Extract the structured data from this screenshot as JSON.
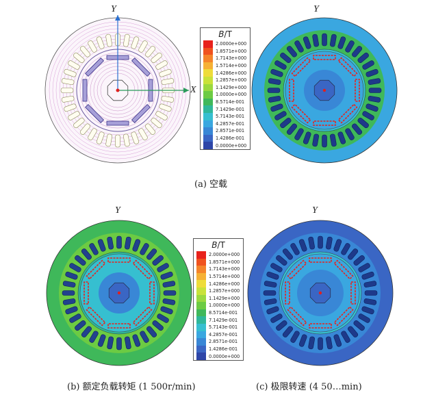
{
  "legend": {
    "title_var": "B",
    "title_unit": "/T",
    "entries": [
      {
        "label": "2.0000e+000",
        "color": "#e8221c"
      },
      {
        "label": "1.8571e+000",
        "color": "#f0521e"
      },
      {
        "label": "1.7143e+000",
        "color": "#f5842a"
      },
      {
        "label": "1.5714e+000",
        "color": "#f6b135"
      },
      {
        "label": "1.4286e+000",
        "color": "#eedc3a"
      },
      {
        "label": "1.2857e+000",
        "color": "#c9e23a"
      },
      {
        "label": "1.1429e+000",
        "color": "#9bd93f"
      },
      {
        "label": "1.0000e+000",
        "color": "#6ccb43"
      },
      {
        "label": "8.5714e-001",
        "color": "#3fb85a"
      },
      {
        "label": "7.1429e-001",
        "color": "#2fb79a"
      },
      {
        "label": "5.7143e-001",
        "color": "#36bfd0"
      },
      {
        "label": "4.2857e-001",
        "color": "#3aa7e0"
      },
      {
        "label": "2.8571e-001",
        "color": "#3987d6"
      },
      {
        "label": "1.4286e-001",
        "color": "#3a66c4"
      },
      {
        "label": "0.0000e+000",
        "color": "#2e46a8"
      }
    ]
  },
  "axes": {
    "y": "Y",
    "x": "X"
  },
  "captions": {
    "a": "(a) 空载",
    "b": "(b) 额定负载转矩 (1 500r/min)",
    "c": "(c) 极限转速 (4 50…min)"
  }
}
